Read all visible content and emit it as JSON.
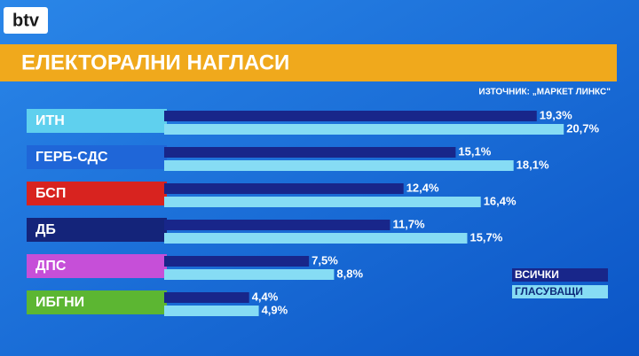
{
  "logo": "btv",
  "chart_data": {
    "type": "bar",
    "orientation": "horizontal",
    "title": "ЕЛЕКТОРАЛНИ НАГЛАСИ",
    "source": "ИЗТОЧНИК: „МАРКЕТ ЛИНКС\"",
    "categories": [
      "ИТН",
      "ГЕРБ-СДС",
      "БСП",
      "ДБ",
      "ДПС",
      "ИБГНИ"
    ],
    "category_colors": [
      "#5fd0ee",
      "#1f66d8",
      "#d8231f",
      "#14247a",
      "#c64fd8",
      "#5cb632"
    ],
    "series": [
      {
        "name": "ВСИЧКИ",
        "color": "#18268a",
        "values": [
          19.3,
          15.1,
          12.4,
          11.7,
          7.5,
          4.4
        ],
        "value_labels": [
          "19,3%",
          "15,1%",
          "12,4%",
          "11,7%",
          "7,5%",
          "4,4%"
        ]
      },
      {
        "name": "ГЛАСУВАЩИ",
        "color": "#86dcf4",
        "values": [
          20.7,
          18.1,
          16.4,
          15.7,
          8.8,
          4.9
        ],
        "value_labels": [
          "20,7%",
          "18,1%",
          "16,4%",
          "15,7%",
          "8,8%",
          "4,9%"
        ]
      }
    ],
    "legend": "bottom-right"
  }
}
